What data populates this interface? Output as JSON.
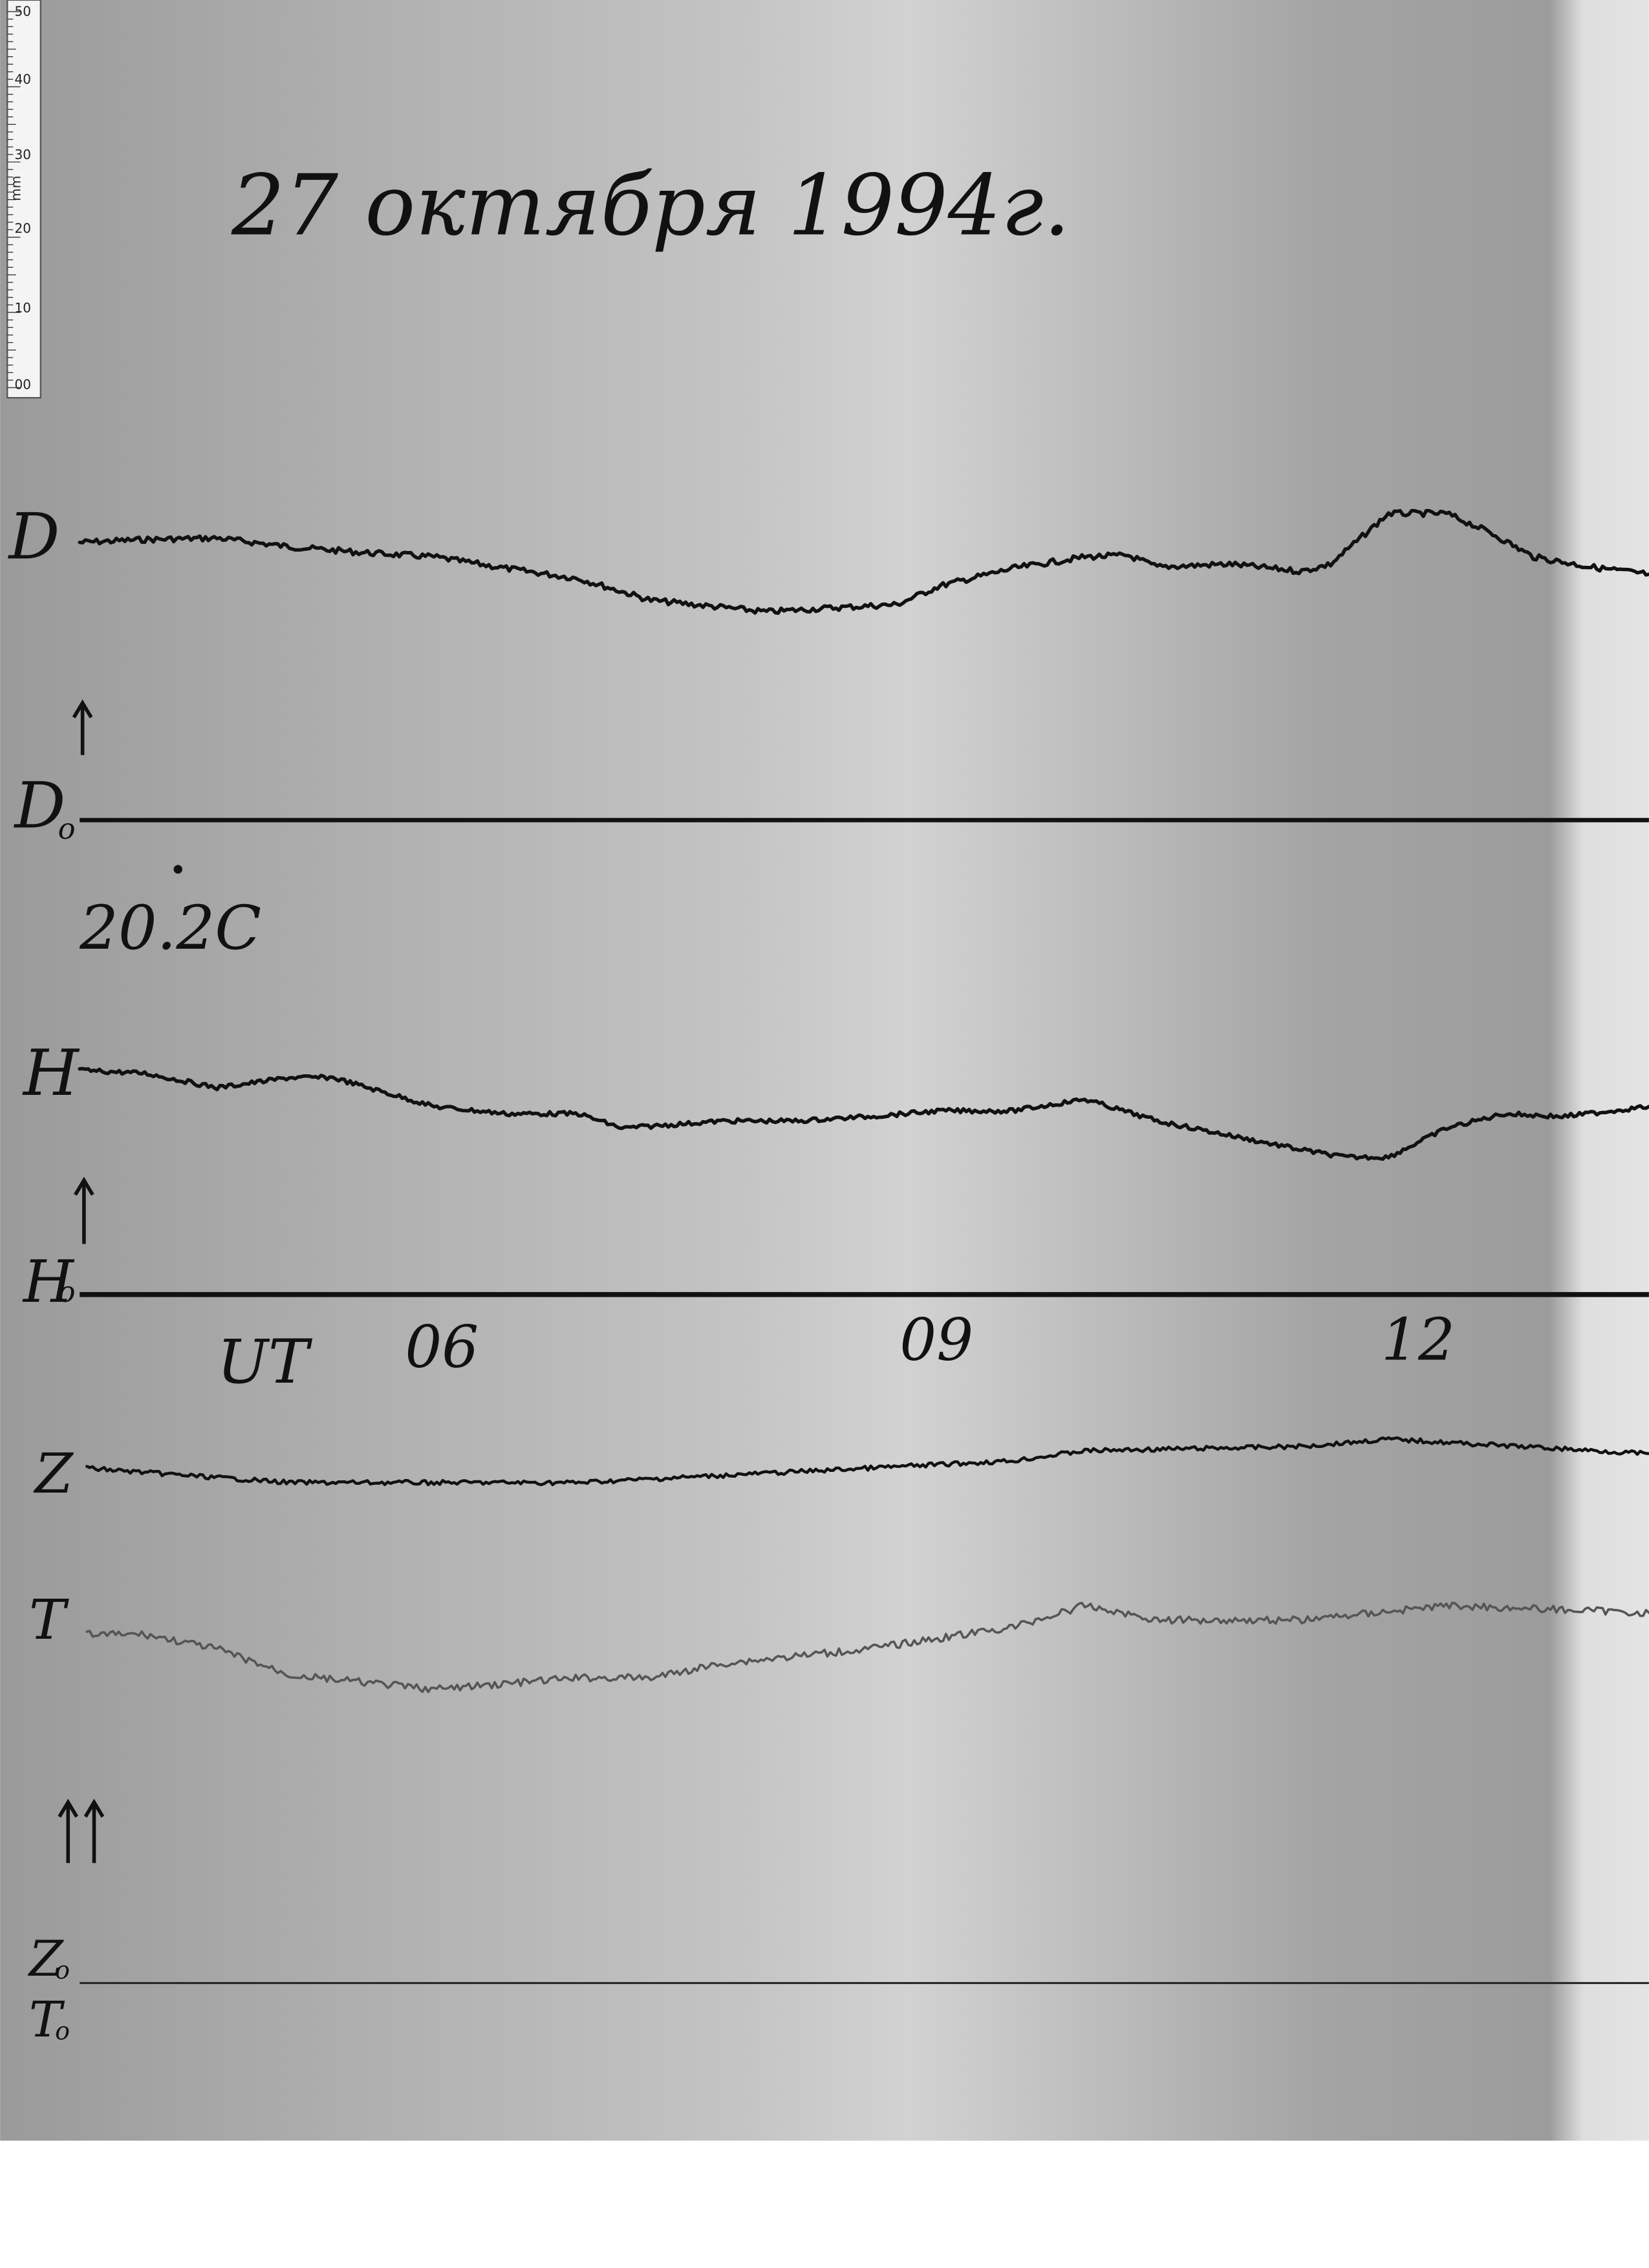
{
  "ruler": {
    "unit": "mm",
    "labels": [
      "50",
      "40",
      "30",
      "20",
      "10",
      "00"
    ]
  },
  "header": {
    "title": "27 октября 1994г."
  },
  "temperature": "20.2C",
  "time_axis": {
    "label": "UT",
    "hours": [
      "06",
      "09",
      "12"
    ]
  },
  "traces": [
    {
      "label": "D",
      "baseline": {
        "main": "D",
        "sub": "o"
      }
    },
    {
      "label": "H",
      "baseline": {
        "main": "H",
        "sub": "o"
      }
    },
    {
      "label": "Z",
      "baseline": {
        "main": "Z",
        "sub": "o"
      }
    },
    {
      "label": "T",
      "baseline": {
        "main": "T",
        "sub": "o"
      }
    }
  ]
}
